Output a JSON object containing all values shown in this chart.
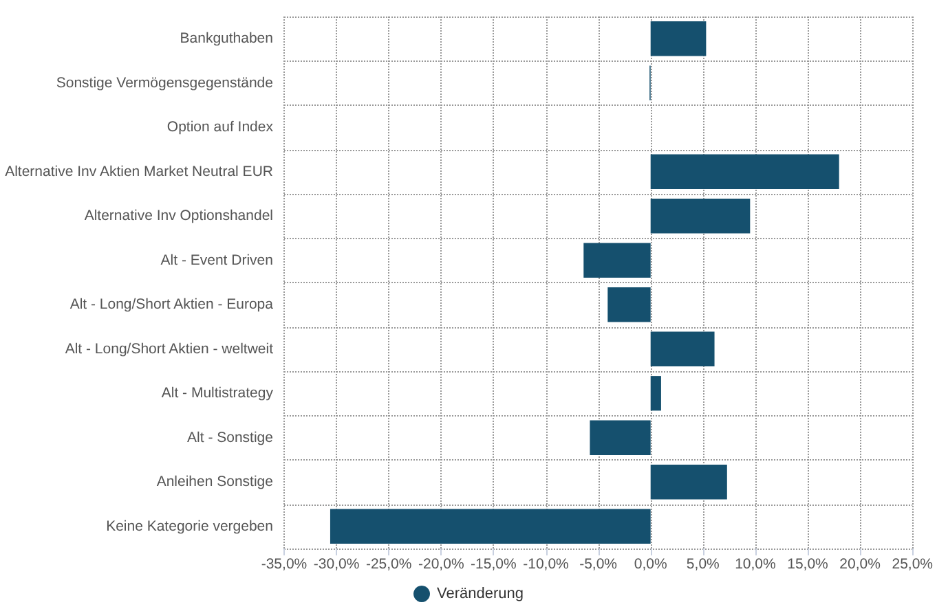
{
  "chart_data": {
    "type": "bar",
    "orientation": "horizontal",
    "categories": [
      "Bankguthaben",
      "Sonstige Vermögensgegenstände",
      "Option auf Index",
      "Alternative Inv Aktien Market Neutral EUR",
      "Alternative Inv Optionshandel",
      "Alt - Event Driven",
      "Alt - Long/Short Aktien - Europa",
      "Alt - Long/Short Aktien - weltweit",
      "Alt - Multistrategy",
      "Alt - Sonstige",
      "Anleihen Sonstige",
      "Keine Kategorie vergeben"
    ],
    "series": [
      {
        "name": "Veränderung",
        "color": "#15506e",
        "values": [
          5.3,
          -0.1,
          0,
          18.0,
          9.5,
          -6.4,
          -4.1,
          6.1,
          1.0,
          -5.8,
          7.3,
          -30.6
        ]
      }
    ],
    "xlim": [
      -35,
      25
    ],
    "xticks": [
      {
        "value": -35,
        "label": "-35,0%"
      },
      {
        "value": -30,
        "label": "-30,0%"
      },
      {
        "value": -25,
        "label": "-25,0%"
      },
      {
        "value": -20,
        "label": "-20,0%"
      },
      {
        "value": -15,
        "label": "-15,0%"
      },
      {
        "value": -10,
        "label": "-10,0%"
      },
      {
        "value": -5,
        "label": "-5,0%"
      },
      {
        "value": 0,
        "label": "0,0%"
      },
      {
        "value": 5,
        "label": "5,0%"
      },
      {
        "value": 10,
        "label": "10,0%"
      },
      {
        "value": 15,
        "label": "15,0%"
      },
      {
        "value": 20,
        "label": "20,0%"
      },
      {
        "value": 25,
        "label": "25,0%"
      }
    ],
    "grid": true,
    "legend": "bottom"
  }
}
